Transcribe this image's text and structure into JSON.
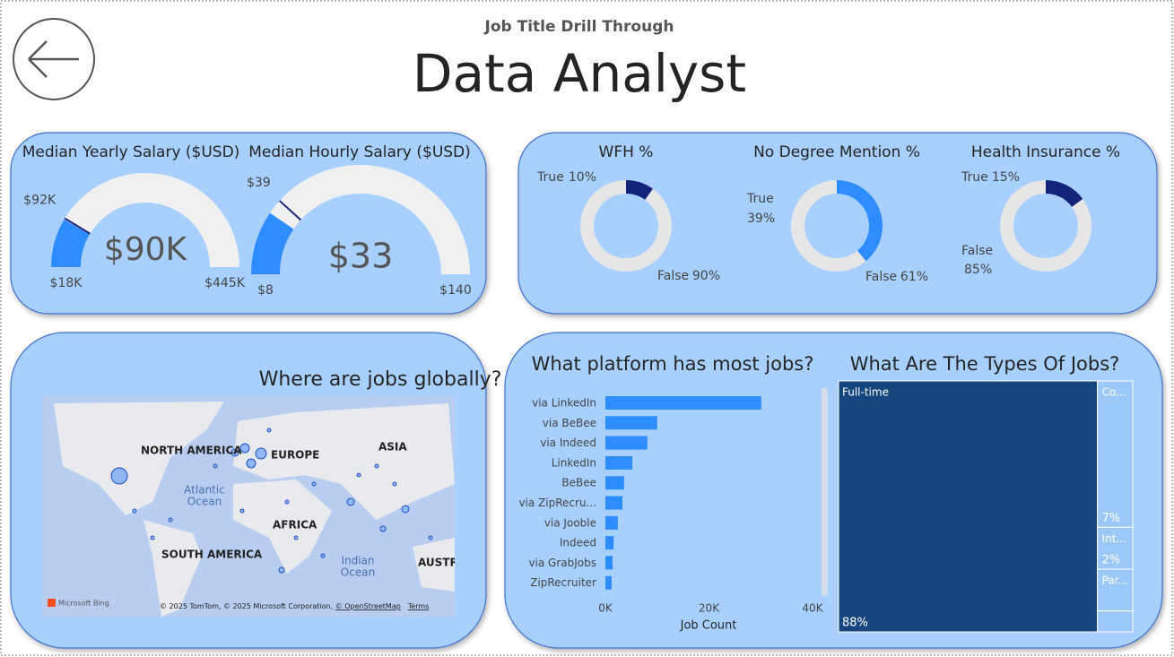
{
  "header": {
    "subtitle": "Job Title Drill Through",
    "title": "Data Analyst"
  },
  "gauges": [
    {
      "title": "Median Yearly Salary ($USD)",
      "value": 90000,
      "value_label": "$90K",
      "min": 18000,
      "min_label": "$18K",
      "max": 445000,
      "max_label": "$445K",
      "target": 92000,
      "target_label": "$92K",
      "color": "#2d8cff",
      "track_color": "#f0f0f0",
      "target_color": "#1a237e"
    },
    {
      "title": "Median Hourly Salary ($USD)",
      "value": 33,
      "value_label": "$33",
      "min": 8,
      "min_label": "$8",
      "max": 140,
      "max_label": "$140",
      "target": 39,
      "target_label": "$39",
      "color": "#2d8cff",
      "track_color": "#f0f0f0",
      "target_color": "#1a237e"
    }
  ],
  "donuts": [
    {
      "title": "WFH %",
      "categories": [
        "True",
        "False"
      ],
      "values": [
        10,
        90
      ],
      "value_labels": [
        "10%",
        "90%"
      ],
      "colors": [
        "#14237a",
        "#e6e6e6"
      ]
    },
    {
      "title": "No Degree Mention %",
      "categories": [
        "True",
        "False"
      ],
      "values": [
        39,
        61
      ],
      "value_labels": [
        "39%",
        "61%"
      ],
      "colors": [
        "#2d8cff",
        "#e6e6e6"
      ]
    },
    {
      "title": "Health Insurance %",
      "categories": [
        "True",
        "False"
      ],
      "values": [
        15,
        85
      ],
      "value_labels": [
        "15%",
        "85%"
      ],
      "colors": [
        "#14237a",
        "#e6e6e6"
      ]
    }
  ],
  "map": {
    "title": "Where are jobs globally?",
    "labels": [
      "NORTH AMERICA",
      "EUROPE",
      "ASIA",
      "AFRICA",
      "SOUTH AMERICA",
      "AUSTRA",
      "Atlantic",
      "Ocean",
      "Indian",
      "Ocean"
    ],
    "logo": "Microsoft Bing",
    "attribution": "© 2025 TomTom, © 2025 Microsoft Corporation, ",
    "osm": "© OpenStreetMap",
    "terms": "Terms"
  },
  "platforms": {
    "title": "What platform has most jobs?",
    "categories": [
      "via LinkedIn",
      "via BeBee",
      "via Indeed",
      "LinkedIn",
      "BeBee",
      "via ZipRecru...",
      "via Jooble",
      "Indeed",
      "via GrabJobs",
      "ZipRecruiter"
    ],
    "values": [
      30100,
      10000,
      8100,
      5200,
      3600,
      3300,
      2400,
      1600,
      1400,
      1200
    ],
    "color": "#2d8cff",
    "xlim": [
      0,
      40000
    ],
    "xticks": [
      {
        "value": 0,
        "label": "0K"
      },
      {
        "value": 20000,
        "label": "20K"
      },
      {
        "value": 40000,
        "label": "40K"
      }
    ],
    "xlabel": "Job Count"
  },
  "job_types": {
    "title": "What Are The Types Of Jobs?",
    "categories": [
      "Full-time",
      "Co...",
      "Int...",
      "Par...",
      null
    ],
    "values": [
      88,
      7,
      2,
      2,
      1
    ],
    "value_labels": [
      "88%",
      "7%",
      "2%",
      null,
      null
    ],
    "colors": [
      "#17467f",
      "#9cc8f8",
      "#9cc8f8",
      "#9cc8f8",
      "#9cc8f8"
    ]
  }
}
